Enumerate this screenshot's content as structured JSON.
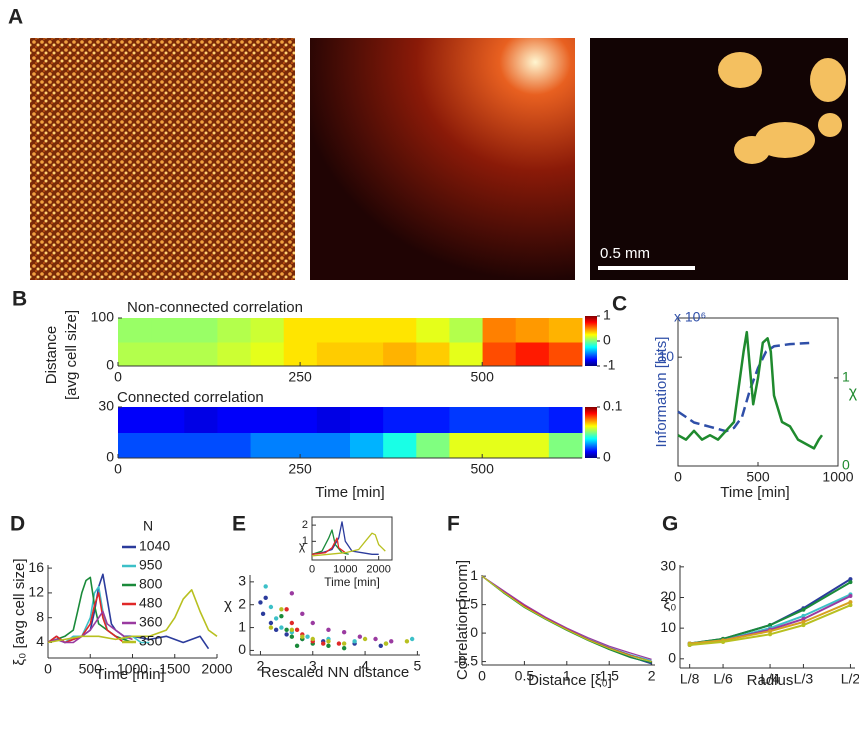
{
  "panel_labels": [
    "A",
    "B",
    "C",
    "D",
    "E",
    "F",
    "G"
  ],
  "scale_bar_label": "0.5 mm",
  "chart_data": [
    {
      "type": "heatmap",
      "title": "Non-connected correlation",
      "ylabel_lines": [
        "Distance",
        "[avg cell size]"
      ],
      "colormap": "jet",
      "xlim": [
        0,
        637
      ],
      "xticks": [
        0,
        250,
        500
      ],
      "ylim": [
        0,
        100
      ],
      "yticks": [
        0,
        100
      ],
      "zlim": [
        -1,
        1
      ],
      "zticks": [
        -1,
        0,
        1
      ],
      "z": [
        [
          0.1,
          0.1,
          0.1,
          0.15,
          0.2,
          0.3,
          0.35,
          0.35,
          0.4,
          0.35,
          0.2,
          0.6,
          0.7,
          0.6
        ],
        [
          0.05,
          0.05,
          0.05,
          0.1,
          0.15,
          0.3,
          0.3,
          0.3,
          0.3,
          0.2,
          0.1,
          0.5,
          0.45,
          0.4
        ]
      ]
    },
    {
      "type": "heatmap",
      "title": "Connected correlation",
      "xlabel": "Time [min]",
      "colormap": "jet",
      "xlim": [
        0,
        637
      ],
      "xticks": [
        0,
        250,
        500
      ],
      "ylim": [
        0,
        30
      ],
      "yticks": [
        0,
        30
      ],
      "zlim": [
        0,
        0.1
      ],
      "zticks": [
        0,
        0.1
      ],
      "z": [
        [
          0.02,
          0.02,
          0.02,
          0.02,
          0.025,
          0.025,
          0.025,
          0.03,
          0.04,
          0.05,
          0.06,
          0.06,
          0.06,
          0.05
        ],
        [
          0.012,
          0.012,
          0.01,
          0.012,
          0.012,
          0.012,
          0.01,
          0.012,
          0.015,
          0.015,
          0.018,
          0.018,
          0.018,
          0.015
        ]
      ]
    },
    {
      "type": "line",
      "xlabel": "Time [min]",
      "ylabel": "Information [bits]",
      "y_multiplier": "x 10⁶",
      "y2label": "χ",
      "xlim": [
        0,
        1000
      ],
      "xticks": [
        0,
        500,
        1000
      ],
      "ylim": [
        0,
        13.6
      ],
      "yticks": [
        10
      ],
      "y2lim": [
        0,
        1.68
      ],
      "y2ticks": [
        0,
        1
      ],
      "series": [
        {
          "color": "#2f4fa8",
          "dashed": true,
          "x": [
            0,
            50,
            100,
            200,
            300,
            350,
            400,
            450,
            500,
            550,
            600,
            700,
            820
          ],
          "values": [
            5,
            4.5,
            4,
            3.6,
            3.2,
            3.5,
            4.5,
            7,
            9,
            10.5,
            11,
            11.2,
            11.3
          ]
        },
        {
          "color": "#1f8a2e",
          "axis": "y2",
          "x": [
            0,
            50,
            100,
            150,
            200,
            250,
            300,
            350,
            380,
            410,
            430,
            450,
            470,
            500,
            530,
            560,
            580,
            600,
            650,
            700,
            750,
            800,
            850,
            880,
            900
          ],
          "values": [
            0.35,
            0.3,
            0.4,
            0.3,
            0.35,
            0.3,
            0.4,
            0.5,
            0.9,
            1.3,
            1.52,
            1.1,
            0.7,
            1.0,
            1.4,
            1.45,
            1.3,
            0.8,
            0.5,
            0.45,
            0.3,
            0.25,
            0.2,
            0.3,
            0.35
          ]
        }
      ]
    },
    {
      "type": "line",
      "xlabel": "Time [min]",
      "ylabel": "ξ₀ [avg cell size]",
      "legend_title": "N",
      "xlim": [
        0,
        2000
      ],
      "xticks": [
        0,
        500,
        1000,
        1500,
        2000
      ],
      "ylim": [
        1.5,
        16.5
      ],
      "yticks": [
        4,
        8,
        12,
        16
      ],
      "series": [
        {
          "name": "1040",
          "color": "#2b3b9c",
          "x": [
            0,
            100,
            200,
            300,
            400,
            500,
            550,
            600,
            650,
            700,
            750,
            800,
            900,
            1000,
            1200,
            1400,
            1600,
            1800,
            1900
          ],
          "values": [
            4,
            5,
            4,
            4.5,
            5,
            6,
            9,
            13,
            15,
            11,
            7,
            6,
            5,
            5,
            4.5,
            5,
            4,
            5,
            3
          ]
        },
        {
          "name": "950",
          "color": "#3cc0c8",
          "x": [
            0,
            100,
            200,
            300,
            400,
            500,
            550,
            600,
            650,
            700,
            800,
            900,
            1000,
            1100,
            1200
          ],
          "values": [
            4,
            4.5,
            4,
            5,
            5,
            8,
            12,
            13,
            9,
            6,
            5,
            4.5,
            5,
            4,
            4
          ]
        },
        {
          "name": "800",
          "color": "#1a8a3a",
          "x": [
            0,
            100,
            200,
            300,
            350,
            400,
            450,
            500,
            550,
            600,
            700,
            800,
            900,
            1000
          ],
          "values": [
            4,
            4.5,
            5,
            6,
            9,
            12,
            14,
            14.5,
            10,
            7,
            6,
            5,
            4.5,
            4
          ]
        },
        {
          "name": "480",
          "color": "#e02828",
          "x": [
            0,
            100,
            200,
            300,
            400,
            500,
            550,
            600,
            650,
            700,
            800,
            900
          ],
          "values": [
            4,
            5,
            4,
            4.5,
            5,
            7,
            10,
            12,
            8,
            6,
            5,
            4
          ]
        },
        {
          "name": "360",
          "color": "#9a3aa0",
          "x": [
            0,
            100,
            200,
            300,
            400,
            500,
            600,
            650,
            700,
            800,
            900,
            1000
          ],
          "values": [
            4,
            4.5,
            4,
            4,
            5,
            6,
            8,
            9,
            7,
            6,
            5,
            4.5
          ]
        },
        {
          "name": "350",
          "color": "#b8c020",
          "x": [
            0,
            200,
            400,
            600,
            800,
            1000,
            1200,
            1400,
            1500,
            1600,
            1700,
            1800,
            1900,
            2000
          ],
          "values": [
            4,
            4.5,
            5,
            5,
            4.5,
            5,
            5,
            6,
            8,
            11,
            12.5,
            9,
            6,
            5
          ]
        }
      ]
    },
    {
      "type": "scatter",
      "xlabel": "Rescaled NN distance",
      "ylabel": "χ",
      "xlim": [
        1.8,
        5.05
      ],
      "xticks": [
        2,
        3,
        4,
        5
      ],
      "ylim": [
        -0.2,
        3.3
      ],
      "yticks": [
        0,
        1,
        2,
        3
      ],
      "series": [
        {
          "color": "#2b3b9c",
          "x": [
            2.0,
            2.05,
            2.1,
            2.2,
            2.3,
            2.5,
            2.8,
            3.2,
            3.8,
            4.3
          ],
          "values": [
            2.1,
            1.6,
            2.3,
            1.2,
            0.9,
            0.7,
            0.5,
            0.4,
            0.3,
            0.2
          ]
        },
        {
          "color": "#3cc0c8",
          "x": [
            2.1,
            2.2,
            2.3,
            2.4,
            2.6,
            2.9,
            3.3,
            3.8,
            4.4,
            4.9
          ],
          "values": [
            2.8,
            1.9,
            1.4,
            1.0,
            0.8,
            0.6,
            0.5,
            0.4,
            0.3,
            0.5
          ]
        },
        {
          "color": "#1a8a3a",
          "x": [
            2.4,
            2.5,
            2.6,
            2.7,
            2.8,
            3.0,
            3.3,
            3.6
          ],
          "values": [
            1.5,
            0.9,
            0.6,
            0.2,
            0.5,
            0.3,
            0.2,
            0.1
          ]
        },
        {
          "color": "#e02828",
          "x": [
            2.5,
            2.6,
            2.7,
            2.8,
            3.0,
            3.2,
            3.5
          ],
          "values": [
            1.8,
            1.2,
            0.9,
            0.7,
            0.4,
            0.3,
            0.3
          ]
        },
        {
          "color": "#9a3aa0",
          "x": [
            2.6,
            2.8,
            3.0,
            3.3,
            3.6,
            3.9,
            4.2,
            4.5
          ],
          "values": [
            2.5,
            1.6,
            1.2,
            0.9,
            0.8,
            0.6,
            0.5,
            0.4
          ]
        },
        {
          "color": "#b8c020",
          "x": [
            2.2,
            2.4,
            2.6,
            2.8,
            3.0,
            3.3,
            3.6,
            4.0,
            4.4,
            4.8
          ],
          "values": [
            1.0,
            1.8,
            0.9,
            0.6,
            0.5,
            0.4,
            0.3,
            0.5,
            0.3,
            0.4
          ]
        }
      ]
    },
    {
      "type": "line",
      "xlabel": "Time [min]",
      "ylabel": "χ",
      "xlim": [
        0,
        2400
      ],
      "xticks": [
        0,
        1000,
        2000
      ],
      "ylim": [
        -0.15,
        2.5
      ],
      "yticks": [
        1,
        2
      ],
      "series": [
        {
          "color": "#2b3b9c",
          "x": [
            0,
            300,
            600,
            800,
            900,
            1000,
            1200,
            1500,
            1800,
            2000
          ],
          "values": [
            0.2,
            0.3,
            0.5,
            1.2,
            2.2,
            1.0,
            0.4,
            0.3,
            0.2,
            0.2
          ]
        },
        {
          "color": "#1a8a3a",
          "x": [
            0,
            300,
            500,
            600,
            700,
            900,
            1100
          ],
          "values": [
            0.2,
            0.4,
            1.2,
            1.7,
            0.8,
            0.3,
            0.2
          ]
        },
        {
          "color": "#e02828",
          "x": [
            0,
            400,
            600,
            700,
            750,
            800,
            1000
          ],
          "values": [
            0.2,
            0.3,
            0.6,
            1.0,
            1.2,
            0.6,
            0.3
          ]
        },
        {
          "color": "#b8c020",
          "x": [
            0,
            500,
            1000,
            1400,
            1600,
            1800,
            1900,
            2000,
            2200
          ],
          "values": [
            0.1,
            0.2,
            0.3,
            0.5,
            1.0,
            1.5,
            1.4,
            0.8,
            0.4
          ]
        }
      ]
    },
    {
      "type": "line",
      "xlabel": "Distance [ξ₀]",
      "ylabel": "Correlation [norm]",
      "xlim": [
        0,
        2.04
      ],
      "xticks": [
        0,
        0.5,
        1,
        1.5,
        2
      ],
      "ylim": [
        -0.56,
        1.02
      ],
      "yticks": [
        -0.5,
        0,
        0.5,
        1
      ],
      "x": [
        0,
        0.25,
        0.5,
        0.75,
        1,
        1.25,
        1.5,
        1.75,
        2
      ],
      "series": [
        {
          "color": "#2b3b9c",
          "values": [
            1,
            0.72,
            0.47,
            0.25,
            0.06,
            -0.12,
            -0.28,
            -0.42,
            -0.54
          ]
        },
        {
          "color": "#3cc0c8",
          "values": [
            1,
            0.74,
            0.49,
            0.27,
            0.08,
            -0.1,
            -0.25,
            -0.38,
            -0.48
          ]
        },
        {
          "color": "#1a8a3a",
          "values": [
            1,
            0.71,
            0.45,
            0.24,
            0.05,
            -0.13,
            -0.29,
            -0.43,
            -0.52
          ]
        },
        {
          "color": "#e02828",
          "values": [
            1,
            0.73,
            0.48,
            0.26,
            0.07,
            -0.11,
            -0.26,
            -0.39,
            -0.5
          ]
        },
        {
          "color": "#9a3aa0",
          "values": [
            1,
            0.75,
            0.5,
            0.28,
            0.09,
            -0.08,
            -0.23,
            -0.35,
            -0.46
          ]
        },
        {
          "color": "#b8c020",
          "values": [
            1,
            0.72,
            0.46,
            0.25,
            0.06,
            -0.12,
            -0.27,
            -0.4,
            -0.5
          ]
        }
      ]
    },
    {
      "type": "line",
      "xlabel": "Radius",
      "ylabel": "ξ₀",
      "xlog": true,
      "xlim": [
        0.115,
        0.52
      ],
      "xticks": [
        {
          "value": 0.125,
          "label": "L/8"
        },
        {
          "value": 0.1667,
          "label": "L/6"
        },
        {
          "value": 0.25,
          "label": "L/4"
        },
        {
          "value": 0.3333,
          "label": "L/3"
        },
        {
          "value": 0.5,
          "label": "L/2"
        }
      ],
      "ylim": [
        -3,
        30.6
      ],
      "yticks": [
        0,
        10,
        20,
        30
      ],
      "x": [
        0.125,
        0.1667,
        0.25,
        0.3333,
        0.5
      ],
      "series": [
        {
          "color": "#2b3b9c",
          "values": [
            5,
            6.5,
            11,
            16.5,
            26
          ]
        },
        {
          "color": "#1a8a3a",
          "values": [
            5,
            6.5,
            11,
            16,
            25
          ]
        },
        {
          "color": "#3cc0c8",
          "values": [
            5,
            6,
            10,
            14,
            21
          ]
        },
        {
          "color": "#9a3aa0",
          "values": [
            4.5,
            6,
            9.5,
            13,
            20.5
          ]
        },
        {
          "color": "#d8a020",
          "values": [
            5,
            6,
            9,
            12,
            18.5
          ]
        },
        {
          "color": "#b8c020",
          "values": [
            4.5,
            5.5,
            8,
            11,
            17.5
          ]
        }
      ]
    }
  ]
}
